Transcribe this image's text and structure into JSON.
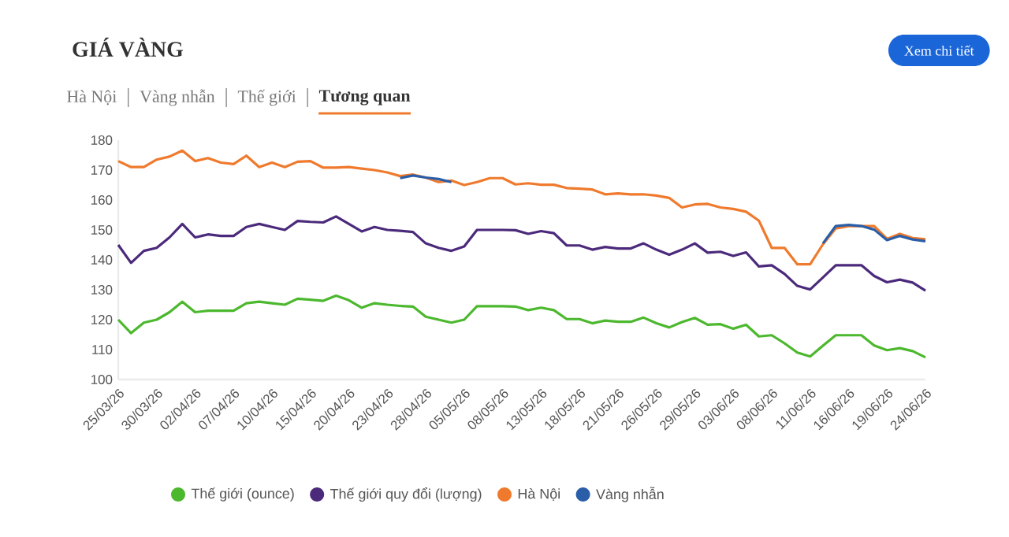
{
  "chart_data": {
    "type": "line",
    "title": "GIÁ VÀNG",
    "annotations": [
      "Hà Nội",
      "Vàng nhẫn",
      "Thế giới",
      "Tương quan",
      "Xem chi tiết"
    ],
    "categories": [
      "25/03/26",
      null,
      null,
      "30/03/26",
      null,
      null,
      "02/04/26",
      null,
      null,
      "07/04/26",
      null,
      null,
      "10/04/26",
      null,
      null,
      "15/04/26",
      null,
      null,
      "20/04/26",
      null,
      null,
      "23/04/26",
      null,
      null,
      "28/04/26",
      null,
      null,
      "05/05/26",
      null,
      null,
      "08/05/26",
      null,
      null,
      "13/05/26",
      null,
      null,
      "18/05/26",
      null,
      null,
      "21/05/26",
      null,
      null,
      "26/05/26",
      null,
      null,
      "29/05/26",
      null,
      null,
      "03/06/26",
      null,
      null,
      "08/06/26",
      null,
      null,
      "11/06/26",
      null,
      null,
      "16/06/26",
      null,
      null,
      "19/06/26",
      null,
      null,
      "24/06/26"
    ],
    "series": [
      {
        "name": "Thế giới (ounce)",
        "color": "#4cb82e",
        "values": [
          120,
          115.5,
          119,
          120,
          122.5,
          126,
          122.5,
          123,
          123,
          123,
          125.5,
          126,
          125.5,
          125,
          127,
          126.7,
          126.3,
          128,
          126.5,
          124,
          125.5,
          125,
          124.6,
          124.4,
          121,
          120,
          119,
          120,
          124.5,
          124.5,
          124.5,
          124.4,
          123.2,
          124,
          123.2,
          120.2,
          120.2,
          118.8,
          119.7,
          119.3,
          119.3,
          120.7,
          118.8,
          117.4,
          119.2,
          120.6,
          118.3,
          118.5,
          117,
          118.3,
          114.4,
          114.8,
          112.1,
          109,
          107.7,
          111.3,
          114.8,
          114.8,
          114.8,
          111.4,
          109.8,
          110.5,
          109.5,
          107.4
        ]
      },
      {
        "name": "Thế giới quy đổi (lượng)",
        "color": "#4b2a7b",
        "values": [
          145,
          139,
          143,
          144,
          147.5,
          152,
          147.5,
          148.5,
          148,
          148,
          151,
          152,
          151,
          150,
          153,
          152.7,
          152.5,
          154.5,
          152,
          149.5,
          151,
          150,
          149.7,
          149.3,
          145.5,
          144,
          143,
          144.5,
          150,
          150,
          150,
          149.9,
          148.7,
          149.6,
          148.9,
          144.8,
          144.8,
          143.4,
          144.3,
          143.8,
          143.8,
          145.5,
          143.4,
          141.7,
          143.4,
          145.5,
          142.4,
          142.7,
          141.3,
          142.5,
          137.8,
          138.2,
          135.3,
          131.3,
          130.1,
          134.1,
          138.2,
          138.2,
          138.2,
          134.6,
          132.5,
          133.4,
          132.4,
          129.7
        ]
      },
      {
        "name": "Hà Nội",
        "color": "#ef7a2d",
        "values": [
          173,
          171,
          171,
          173.5,
          174.5,
          176.5,
          173,
          174,
          172.5,
          172,
          174.8,
          171,
          172.5,
          171,
          172.8,
          173,
          170.8,
          170.8,
          171,
          170.5,
          170,
          169.2,
          168,
          168.5,
          167.5,
          166,
          166.5,
          165,
          166,
          167.3,
          167.3,
          165.2,
          165.6,
          165.1,
          165.1,
          164,
          163.8,
          163.5,
          161.9,
          162.2,
          161.9,
          161.9,
          161.5,
          160.7,
          157.5,
          158.5,
          158.7,
          157.5,
          157,
          156.1,
          153.1,
          144,
          144,
          138.5,
          138.5,
          145.2,
          150.5,
          151.3,
          151.3,
          151.3,
          147,
          148.7,
          147.3,
          146.9
        ]
      },
      {
        "name": "Vàng nhẫn",
        "color": "#2a5ea8",
        "values": [
          null,
          null,
          null,
          null,
          null,
          null,
          null,
          null,
          null,
          null,
          null,
          null,
          null,
          null,
          null,
          null,
          null,
          null,
          null,
          null,
          null,
          null,
          167.3,
          168.2,
          167.5,
          167,
          166,
          null,
          null,
          null,
          null,
          null,
          null,
          null,
          null,
          null,
          null,
          null,
          null,
          null,
          null,
          null,
          null,
          null,
          null,
          null,
          null,
          null,
          null,
          null,
          null,
          null,
          null,
          null,
          null,
          145.5,
          151.3,
          151.7,
          151.3,
          150.1,
          146.6,
          148,
          146.8,
          146.2
        ]
      }
    ],
    "ylim": [
      100,
      180
    ],
    "yticks": [
      100,
      110,
      120,
      130,
      140,
      150,
      160,
      170,
      180
    ],
    "legend": "bottom",
    "marker": "none",
    "line_style": "solid",
    "grid": false
  }
}
